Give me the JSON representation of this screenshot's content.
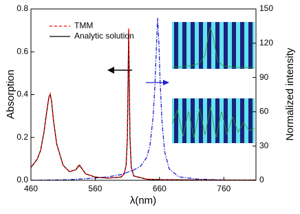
{
  "chart_data": {
    "type": "line",
    "x_label": "λ(nm)",
    "y_label": "Absorption",
    "y2_label": "Normalized intensity",
    "xlim": [
      460,
      810
    ],
    "xticks": [
      460,
      560,
      660,
      760
    ],
    "ylim": [
      0,
      0.8
    ],
    "yticks": [
      {
        "value": 0,
        "label": "0.0"
      },
      0.2,
      0.4,
      0.6,
      0.8
    ],
    "y2lim": [
      0,
      150
    ],
    "y2ticks": [
      0,
      30,
      60,
      90,
      120,
      150
    ],
    "legend": "upper left",
    "series": [
      {
        "name": "TMM",
        "color": "#ff0000",
        "linestyle": "dashed",
        "x": [
          460,
          470,
          475,
          480,
          485,
          488,
          490,
          492,
          495,
          500,
          510,
          520,
          530,
          535,
          538,
          545,
          560,
          580,
          600,
          605,
          608,
          610,
          611,
          612,
          613,
          614,
          616,
          620,
          640,
          660,
          700,
          760,
          810
        ],
        "values": [
          0.06,
          0.1,
          0.14,
          0.22,
          0.33,
          0.39,
          0.405,
          0.37,
          0.28,
          0.17,
          0.07,
          0.04,
          0.05,
          0.075,
          0.06,
          0.03,
          0.015,
          0.01,
          0.015,
          0.03,
          0.07,
          0.2,
          0.45,
          0.71,
          0.45,
          0.2,
          0.06,
          0.02,
          0.005,
          0.003,
          0.002,
          0.001,
          0.001
        ]
      },
      {
        "name": "Analytic solution",
        "color": "#000000",
        "linestyle": "solid",
        "x": [
          460,
          470,
          475,
          480,
          485,
          488,
          490,
          492,
          495,
          500,
          510,
          520,
          530,
          535,
          538,
          545,
          560,
          580,
          600,
          605,
          608,
          610,
          611,
          612,
          613,
          614,
          616,
          620,
          640,
          660,
          700,
          760,
          810
        ],
        "values": [
          0.06,
          0.1,
          0.14,
          0.22,
          0.33,
          0.39,
          0.4,
          0.37,
          0.28,
          0.17,
          0.07,
          0.04,
          0.05,
          0.07,
          0.06,
          0.03,
          0.015,
          0.01,
          0.015,
          0.03,
          0.07,
          0.2,
          0.45,
          0.7,
          0.45,
          0.2,
          0.06,
          0.02,
          0.005,
          0.003,
          0.002,
          0.001,
          0.001
        ]
      },
      {
        "color": "#1c1cd6",
        "linestyle": "dashdot",
        "axis": "y2",
        "x": [
          460,
          520,
          560,
          580,
          600,
          620,
          630,
          640,
          645,
          650,
          653,
          655,
          657,
          659,
          661,
          664,
          668,
          675,
          690,
          720,
          760,
          810
        ],
        "values": [
          0,
          0.5,
          2,
          3,
          5,
          9,
          12,
          20,
          30,
          55,
          85,
          115,
          142,
          120,
          85,
          50,
          25,
          10,
          3,
          1,
          0.3,
          0
        ]
      }
    ]
  }
}
